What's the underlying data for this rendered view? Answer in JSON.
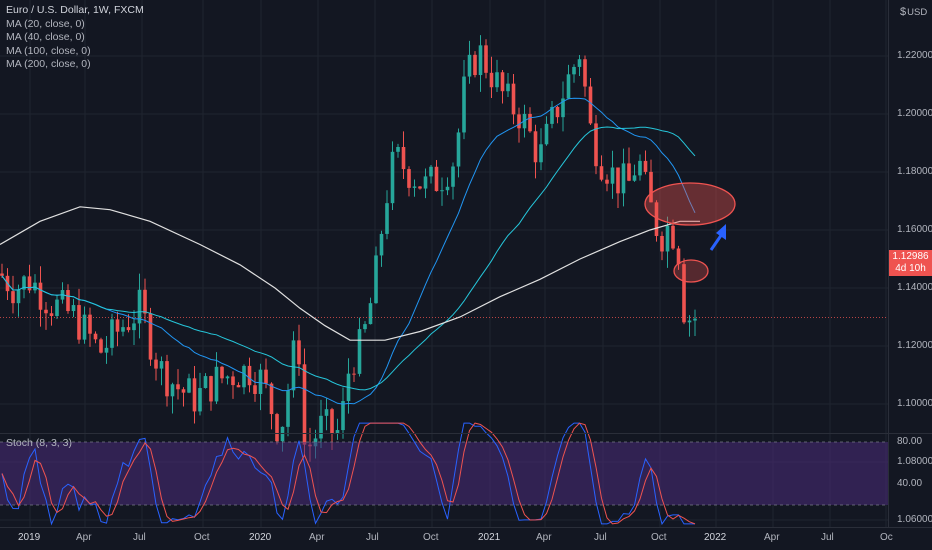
{
  "legend": {
    "title": "Euro / U.S. Dollar, 1W, FXCM",
    "ma_20": "MA (20, close, 0)",
    "ma_40": "MA (40, close, 0)",
    "ma_100": "MA (100, close, 0)",
    "ma_200": "MA (200, close, 0)"
  },
  "stoch": {
    "label": "Stoch (8, 3, 3)"
  },
  "currency": {
    "symbol": "$",
    "code": "USD"
  },
  "price_axis": [
    "1.22000",
    "1.20000",
    "1.18000",
    "1.16000",
    "1.14000",
    "1.12000",
    "1.10000",
    "1.08000",
    "1.06000"
  ],
  "stoch_axis": [
    "80.00",
    "40.00"
  ],
  "time_axis": [
    "2019",
    "Apr",
    "Jul",
    "Oct",
    "2020",
    "Apr",
    "Jul",
    "Oct",
    "2021",
    "Apr",
    "Jul",
    "Oct",
    "2022",
    "Apr",
    "Jul",
    "Oc"
  ],
  "last_price": {
    "price": "1.12986",
    "countdown": "4d 10h"
  },
  "colors": {
    "background": "#131722",
    "up": "#26a69a",
    "down": "#ef5350",
    "ma_20": "#2196f3",
    "ma_40": "#26c6da",
    "ma_200": "#e0e0e0",
    "stoch_band": "#4a2b7a",
    "stoch_k": "#2962ff",
    "stoch_d": "#ef5350",
    "annotation": "#ef5350",
    "arrow": "#2962ff"
  },
  "chart_data": {
    "type": "candlestick",
    "symbol": "EURUSD",
    "interval": "1W",
    "y_range": [
      1.055,
      1.235
    ],
    "last_close": 1.12986,
    "stoch_range": [
      0,
      100
    ],
    "stoch_levels": [
      80,
      20
    ],
    "moving_averages": [
      "MA 20",
      "MA 40",
      "MA 100",
      "MA 200"
    ]
  }
}
